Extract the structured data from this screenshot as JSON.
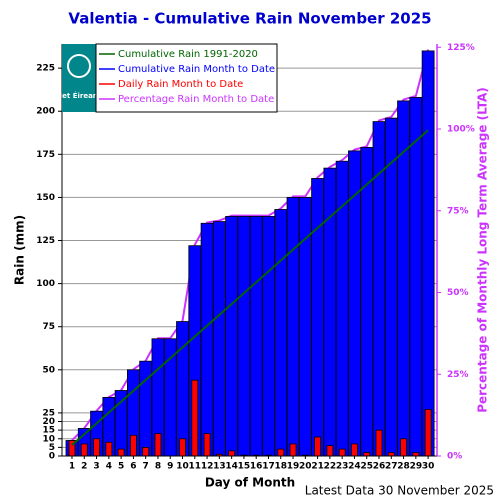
{
  "chart_data": {
    "type": "bar",
    "title": "Valentia - Cumulative Rain November   2025",
    "x_label": "Day of Month",
    "y_label": "Rain (mm)",
    "y2_label": "Percentage of Monthly Long Term Average (LTA)",
    "footer": "Latest Data 30 November 2025",
    "logo_text": "Met Éireann",
    "categories": [
      "1",
      "2",
      "3",
      "4",
      "5",
      "6",
      "7",
      "8",
      "9",
      "10",
      "11",
      "12",
      "13",
      "14",
      "15",
      "16",
      "17",
      "18",
      "19",
      "20",
      "21",
      "22",
      "23",
      "24",
      "25",
      "26",
      "27",
      "28",
      "29",
      "30"
    ],
    "series": [
      {
        "name": "Cumulative Rain 1991-2020",
        "kind": "line",
        "color": "#006400",
        "values": [
          6.3,
          12.6,
          18.9,
          25.2,
          31.5,
          37.8,
          44.1,
          50.4,
          56.7,
          63,
          69.3,
          75.6,
          81.9,
          88.2,
          94.5,
          100.8,
          107.1,
          113.4,
          119.7,
          126,
          132.3,
          138.6,
          144.9,
          151.2,
          157.5,
          163.8,
          170.1,
          176.4,
          182.7,
          189
        ]
      },
      {
        "name": "Cumulative Rain Month to Date",
        "kind": "bar",
        "color": "#0000ff",
        "values": [
          9,
          16,
          26,
          34,
          38,
          50,
          55,
          68,
          68,
          78,
          122,
          135,
          136,
          139,
          139,
          139,
          139,
          143,
          150,
          150,
          161,
          167,
          171,
          177,
          179,
          194,
          196,
          206,
          208,
          235
        ]
      },
      {
        "name": "Daily Rain Month to Date",
        "kind": "bar",
        "color": "#ff0000",
        "values": [
          9,
          7,
          10,
          8,
          4,
          12,
          5,
          13,
          0,
          10,
          44,
          13,
          1,
          3,
          0.5,
          0.5,
          0.5,
          4,
          7,
          0.5,
          11,
          6,
          4,
          7,
          2,
          15,
          2,
          10,
          2,
          27
        ]
      },
      {
        "name": "Percentage Rain Month to Date",
        "kind": "line",
        "axis": "y2",
        "color": "#cc33ff",
        "values": [
          4.8,
          8.5,
          13.8,
          18,
          20.1,
          26.5,
          29.1,
          36,
          36,
          41.3,
          64.6,
          71.4,
          72,
          73.5,
          73.5,
          73.5,
          73.5,
          75.7,
          79.4,
          79.4,
          85.2,
          88.4,
          90.5,
          93.7,
          94.7,
          102.6,
          103.7,
          109,
          110.1,
          124.3
        ]
      }
    ],
    "ylim": [
      0,
      239
    ],
    "yticks": [
      0,
      5,
      10,
      15,
      20,
      25,
      50,
      75,
      100,
      125,
      150,
      175,
      200,
      225
    ],
    "y2lim": [
      0,
      126
    ],
    "y2ticks": [
      {
        "value": 0,
        "label": "0%"
      },
      {
        "value": 25,
        "label": "25%"
      },
      {
        "value": 50,
        "label": "50%"
      },
      {
        "value": 75,
        "label": "75%"
      },
      {
        "value": 100,
        "label": "100%"
      },
      {
        "value": 125,
        "label": "125%"
      }
    ],
    "grid": true
  }
}
